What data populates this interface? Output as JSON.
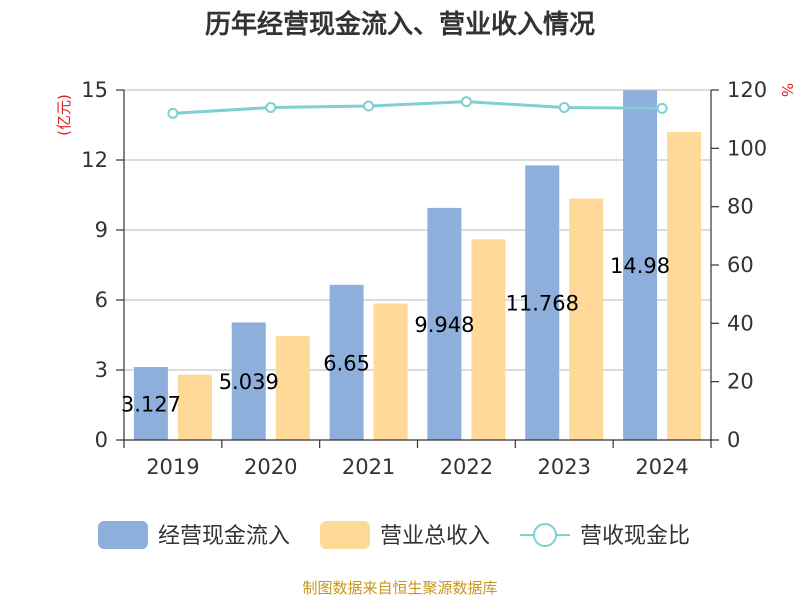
{
  "chart_data": {
    "type": "bar",
    "title": "历年经营现金流入、营业收入情况",
    "categories": [
      "2019",
      "2020",
      "2021",
      "2022",
      "2023",
      "2024"
    ],
    "series": [
      {
        "name": "经营现金流入",
        "type": "bar",
        "axis": "left",
        "color": "#8eaedb",
        "values": [
          3.127,
          5.039,
          6.65,
          9.948,
          11.768,
          14.98
        ]
      },
      {
        "name": "营业总收入",
        "type": "bar",
        "axis": "left",
        "color": "#fed998",
        "values": [
          2.8,
          4.45,
          5.85,
          8.6,
          10.35,
          13.2
        ]
      },
      {
        "name": "营收现金比",
        "type": "line",
        "axis": "right",
        "color": "#7fd0d2",
        "values": [
          112,
          114,
          114.5,
          116,
          114,
          113.7
        ]
      }
    ],
    "data_labels": [
      "3.127",
      "5.039",
      "6.65",
      "9.948",
      "11.768",
      "14.98"
    ],
    "y_left": {
      "label": "(亿元)",
      "ylim": [
        0,
        15
      ],
      "ticks": [
        "0",
        "3",
        "6",
        "9",
        "12",
        "15"
      ]
    },
    "y_right": {
      "label": "%",
      "ylim": [
        0,
        120
      ],
      "ticks": [
        "0",
        "20",
        "40",
        "60",
        "80",
        "100",
        "120"
      ]
    },
    "grid": true,
    "legend_position": "bottom"
  },
  "source_text": "制图数据来自恒生聚源数据库"
}
